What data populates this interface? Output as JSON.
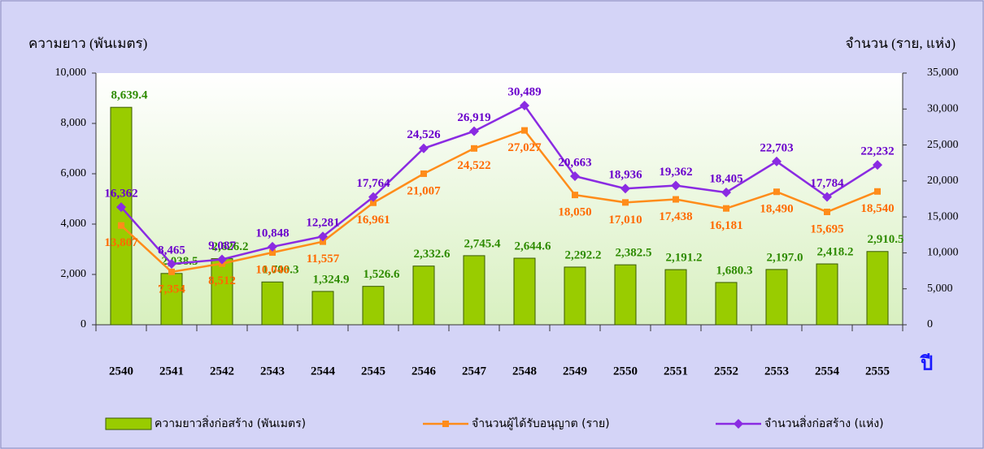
{
  "chart_data": {
    "type": "bar-line",
    "ylabel": "ความยาว (พันเมตร)",
    "y2label": "จำนวน (ราย, แห่ง)",
    "xlabel": "ปี",
    "categories": [
      "2540",
      "2541",
      "2542",
      "2543",
      "2544",
      "2545",
      "2546",
      "2547",
      "2548",
      "2549",
      "2550",
      "2551",
      "2552",
      "2553",
      "2554",
      "2555"
    ],
    "series": [
      {
        "name": "ความยาวสิ่งก่อสร้าง (พันเมตร)",
        "type": "bar",
        "color": "#99cc00",
        "label_color": "#2e8b00",
        "values": [
          8639.4,
          2038.5,
          2626.2,
          1700.3,
          1324.9,
          1526.6,
          2332.6,
          2745.4,
          2644.6,
          2292.2,
          2382.5,
          2191.2,
          1680.3,
          2197.0,
          2418.2,
          2910.5
        ],
        "value_labels": [
          "8,639.4",
          "2,038.5",
          "2,626.2",
          "1,700.3",
          "1,324.9",
          "1,526.6",
          "2,332.6",
          "2,745.4",
          "2,644.6",
          "2,292.2",
          "2,382.5",
          "2,191.2",
          "1,680.3",
          "2,197.0",
          "2,418.2",
          "2,910.5"
        ]
      },
      {
        "name": "จำนวนผู้ได้รับอนุญาต (ราย)",
        "type": "line",
        "axis": "y2",
        "marker": "square",
        "color": "#ff8c1a",
        "label_color": "#ff6a00",
        "values": [
          13807,
          7354,
          8512,
          10046,
          11557,
          16961,
          21007,
          24522,
          27027,
          18050,
          17010,
          17438,
          16181,
          18490,
          15695,
          18540
        ],
        "value_labels": [
          "13,807",
          "7,354",
          "8,512",
          "10,046",
          "11,557",
          "16,961",
          "21,007",
          "24,522",
          "27,027",
          "18,050",
          "17,010",
          "17,438",
          "16,181",
          "18,490",
          "15,695",
          "18,540"
        ]
      },
      {
        "name": "จำนวนสิ่งก่อสร้าง (แห่ง)",
        "type": "line",
        "axis": "y2",
        "marker": "diamond",
        "color": "#8a2be2",
        "label_color": "#6a00cc",
        "values": [
          16362,
          8465,
          9087,
          10848,
          12281,
          17764,
          24526,
          26919,
          30489,
          20663,
          18936,
          19362,
          18405,
          22703,
          17784,
          22232
        ],
        "value_labels": [
          "16,362",
          "8,465",
          "9,087",
          "10,848",
          "12,281",
          "17,764",
          "24,526",
          "26,919",
          "30,489",
          "20,663",
          "18,936",
          "19,362",
          "18,405",
          "22,703",
          "17,784",
          "22,232"
        ]
      }
    ],
    "ylim": [
      0,
      10000
    ],
    "yticks": [
      0,
      {
        "value": 2000,
        "label": "2,000"
      },
      {
        "value": 4000,
        "label": "4,000"
      },
      {
        "value": 6000,
        "label": "6,000"
      },
      {
        "value": 8000,
        "label": "8,000"
      },
      {
        "value": 10000,
        "label": "10,000"
      }
    ],
    "y2lim": [
      0,
      35000
    ],
    "y2ticks": [
      0,
      {
        "value": 5000,
        "label": "5,000"
      },
      {
        "value": 10000,
        "label": "10,000"
      },
      {
        "value": 15000,
        "label": "15,000"
      },
      {
        "value": 20000,
        "label": "20,000"
      },
      {
        "value": 25000,
        "label": "25,000"
      },
      {
        "value": 30000,
        "label": "30,000"
      },
      {
        "value": 35000,
        "label": "35,000"
      }
    ],
    "legend": "bottom"
  }
}
